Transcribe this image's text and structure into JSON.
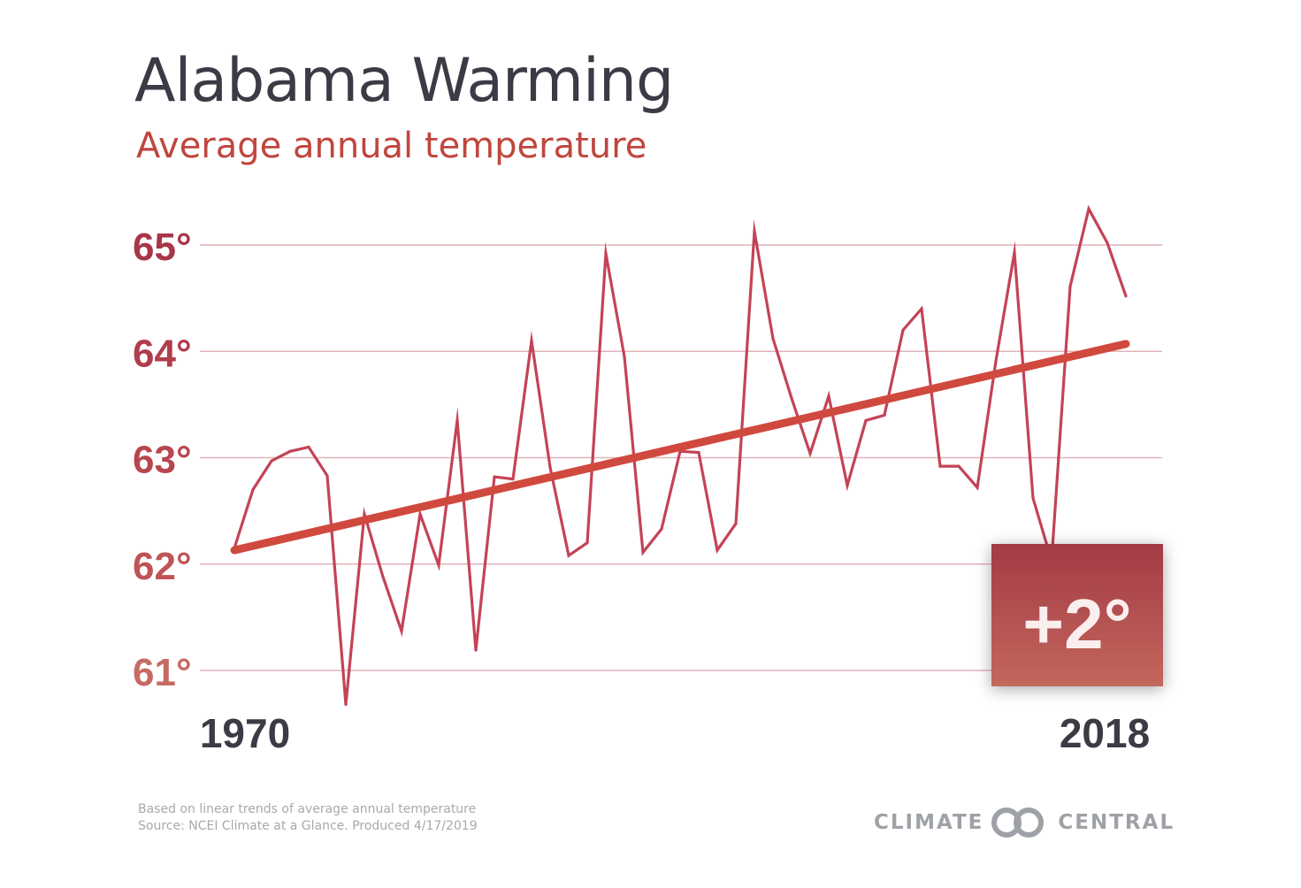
{
  "header": {
    "title": "Alabama Warming",
    "subtitle": "Average annual temperature"
  },
  "colors": {
    "title": "#3b3b46",
    "accent": "#c0463e",
    "series": "#c44356",
    "trend": "#d0493f",
    "grid": "#e3b3b7",
    "logo": "#9ea2a7",
    "badge_top": "#a33a45",
    "badge_bottom": "#c3685d"
  },
  "chart_data": {
    "type": "line",
    "title": "Alabama Warming",
    "subtitle": "Average annual temperature",
    "xlabel": "",
    "ylabel": "",
    "x_tick_labels": [
      "1970",
      "2018"
    ],
    "y_ticks": [
      65,
      64,
      63,
      62,
      61
    ],
    "y_tick_labels": [
      "65°",
      "64°",
      "63°",
      "62°",
      "61°"
    ],
    "ylim": [
      60.5,
      65.5
    ],
    "xlim": [
      1970,
      2018
    ],
    "grid": true,
    "series": [
      {
        "name": "Average annual temperature",
        "x": [
          1970,
          1971,
          1972,
          1973,
          1974,
          1975,
          1976,
          1977,
          1978,
          1979,
          1980,
          1981,
          1982,
          1983,
          1984,
          1985,
          1986,
          1987,
          1988,
          1989,
          1990,
          1991,
          1992,
          1993,
          1994,
          1995,
          1996,
          1997,
          1998,
          1999,
          2000,
          2001,
          2002,
          2003,
          2004,
          2005,
          2006,
          2007,
          2008,
          2009,
          2010,
          2011,
          2012,
          2013,
          2014,
          2015,
          2016,
          2017,
          2018
        ],
        "values": [
          62.15,
          62.7,
          62.97,
          63.06,
          63.1,
          62.83,
          60.68,
          62.47,
          61.88,
          61.37,
          62.47,
          61.99,
          63.35,
          61.19,
          62.82,
          62.8,
          64.1,
          62.91,
          62.08,
          62.2,
          64.92,
          63.95,
          62.11,
          62.33,
          63.06,
          63.05,
          62.13,
          62.38,
          65.13,
          64.12,
          63.56,
          63.04,
          63.58,
          62.74,
          63.35,
          63.4,
          64.2,
          64.4,
          62.92,
          62.92,
          62.72,
          63.91,
          64.93,
          62.62,
          62.03,
          64.61,
          65.34,
          65.02,
          64.52
        ]
      },
      {
        "name": "Linear trend",
        "x": [
          1970,
          2018
        ],
        "values": [
          62.13,
          64.07
        ]
      }
    ],
    "annotation": "+2°"
  },
  "footer": {
    "note_line1": "Based on linear trends of average annual temperature",
    "note_line2": "Source: NCEI Climate at a Glance. Produced 4/17/2019",
    "logo_left": "CLIMATE",
    "logo_right": "CENTRAL"
  }
}
